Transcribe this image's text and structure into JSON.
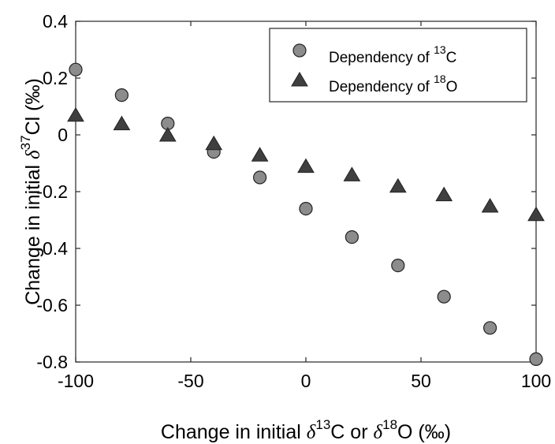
{
  "chart_data": {
    "type": "scatter",
    "title": "",
    "xlabel": {
      "prefix": "Change in initial ",
      "delta1": "δ",
      "sup1": "13",
      "mid": "C or ",
      "delta2": "δ",
      "sup2": "18",
      "suffix": "O (‰)"
    },
    "ylabel": {
      "prefix": "Change in initial ",
      "delta": "δ",
      "sup": "37",
      "suffix": "Cl (‰)"
    },
    "xlim": [
      -100,
      100
    ],
    "ylim": [
      -0.8,
      0.4
    ],
    "xticks": [
      -100,
      -50,
      0,
      50,
      100
    ],
    "xtick_labels": [
      "-100",
      "-50",
      "0",
      "50",
      "100"
    ],
    "yticks": [
      -0.8,
      -0.6,
      -0.4,
      -0.2,
      0,
      0.2,
      0.4
    ],
    "ytick_labels": [
      "-0.8",
      "-0.6",
      "-0.4",
      "-0.2",
      "0",
      "0.2",
      "0.4"
    ],
    "grid": false,
    "legend_position": "top-right",
    "series": [
      {
        "name": {
          "prefix": "Dependency of ",
          "sup": "13",
          "suffix": "C"
        },
        "marker": "circle",
        "color": "#8c8c8c",
        "x": [
          -100,
          -80,
          -60,
          -40,
          -20,
          0,
          20,
          40,
          60,
          80,
          100
        ],
        "y": [
          0.23,
          0.14,
          0.04,
          -0.06,
          -0.15,
          -0.26,
          -0.36,
          -0.46,
          -0.57,
          -0.68,
          -0.79
        ]
      },
      {
        "name": {
          "prefix": "Dependency of ",
          "sup": "18",
          "suffix": "O"
        },
        "marker": "triangle",
        "color": "#3f3f3f",
        "x": [
          -100,
          -80,
          -60,
          -40,
          -20,
          0,
          20,
          40,
          60,
          80,
          100
        ],
        "y": [
          0.07,
          0.04,
          0.0,
          -0.03,
          -0.07,
          -0.11,
          -0.14,
          -0.18,
          -0.21,
          -0.25,
          -0.28
        ]
      }
    ]
  }
}
